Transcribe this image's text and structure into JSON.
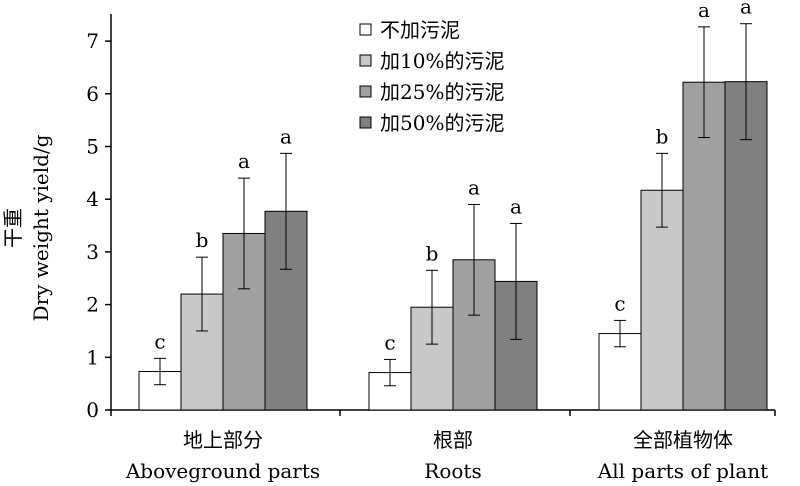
{
  "chart_data": {
    "type": "bar",
    "ylabel_cn": "干重",
    "ylabel_en": "Dry weight yield/g",
    "ylim": [
      0,
      7.5
    ],
    "yticks": [
      0,
      1,
      2,
      3,
      4,
      5,
      6,
      7
    ],
    "grid": false,
    "legend_position": "top-center",
    "categories": [
      {
        "cn": "地上部分",
        "en": "Aboveground parts"
      },
      {
        "cn": "根部",
        "en": "Roots"
      },
      {
        "cn": "全部植物体",
        "en": "All parts of plant"
      }
    ],
    "series": [
      {
        "name": "不加污泥",
        "color": "#ffffff",
        "values": [
          0.73,
          0.71,
          1.45
        ],
        "errors": [
          0.25,
          0.25,
          0.25
        ],
        "letters": [
          "c",
          "c",
          "c"
        ]
      },
      {
        "name": "加10%的污泥",
        "color": "#c8c8c8",
        "values": [
          2.2,
          1.95,
          4.17
        ],
        "errors": [
          0.7,
          0.7,
          0.7
        ],
        "letters": [
          "b",
          "b",
          "b"
        ]
      },
      {
        "name": "加25%的污泥",
        "color": "#a0a0a0",
        "values": [
          3.35,
          2.85,
          6.22
        ],
        "errors": [
          1.05,
          1.05,
          1.05
        ],
        "letters": [
          "a",
          "a",
          "a"
        ]
      },
      {
        "name": "加50%的污泥",
        "color": "#808080",
        "values": [
          3.77,
          2.44,
          6.23
        ],
        "errors": [
          1.1,
          1.1,
          1.1
        ],
        "letters": [
          "a",
          "a",
          "a"
        ]
      }
    ]
  }
}
